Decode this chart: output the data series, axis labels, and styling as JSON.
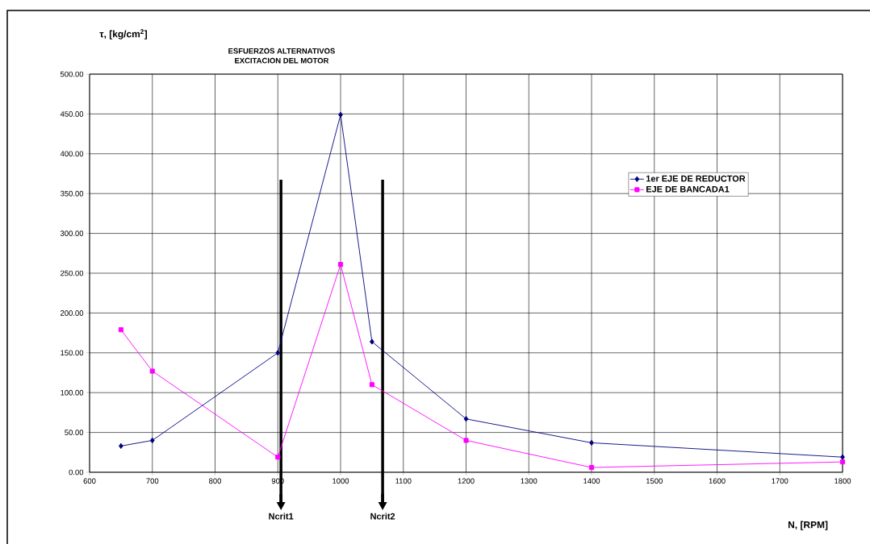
{
  "chart_data": {
    "type": "line",
    "title": "ESFUERZOS ALTERNATIVOS",
    "subtitle": "EXCITACION DEL MOTOR",
    "xlabel": "N, [RPM]",
    "ylabel": "τ, [kg/cm$^{2}$]",
    "x": [
      650,
      700,
      900,
      1000,
      1050,
      1200,
      1400,
      1800
    ],
    "series": [
      {
        "name": "1er EJE DE REDUCTOR",
        "color": "#000080",
        "marker": "diamond",
        "values": [
          33,
          40,
          150,
          449,
          164,
          67,
          37,
          19
        ]
      },
      {
        "name": "EJE DE BANCADA1",
        "color": "#ff00ff",
        "marker": "square",
        "values": [
          179,
          127,
          19,
          261,
          110,
          40,
          6,
          13
        ]
      }
    ],
    "xlim": [
      600,
      1800
    ],
    "ylim": [
      0,
      500
    ],
    "xticks": [
      600,
      700,
      800,
      900,
      1000,
      1100,
      1200,
      1300,
      1400,
      1500,
      1600,
      1700,
      1800
    ],
    "yticks": [
      {
        "value": 0,
        "label": "0.00"
      },
      {
        "value": 50,
        "label": "50.00"
      },
      {
        "value": 100,
        "label": "100.00"
      },
      {
        "value": 150,
        "label": "150.00"
      },
      {
        "value": 200,
        "label": "200.00"
      },
      {
        "value": 250,
        "label": "250.00"
      },
      {
        "value": 300,
        "label": "300.00"
      },
      {
        "value": 350,
        "label": "350.00"
      },
      {
        "value": 400,
        "label": "400.00"
      },
      {
        "value": 450,
        "label": "450.00"
      },
      {
        "value": 500,
        "label": "500.00"
      }
    ],
    "ref_lines": [
      {
        "axis": "x",
        "value": 905,
        "label": "Ncrit1",
        "color": "#000000"
      },
      {
        "axis": "x",
        "value": 1067,
        "label": "Ncrit2",
        "color": "#000000"
      }
    ],
    "grid": true,
    "legend": "right",
    "line_style": "solid"
  }
}
